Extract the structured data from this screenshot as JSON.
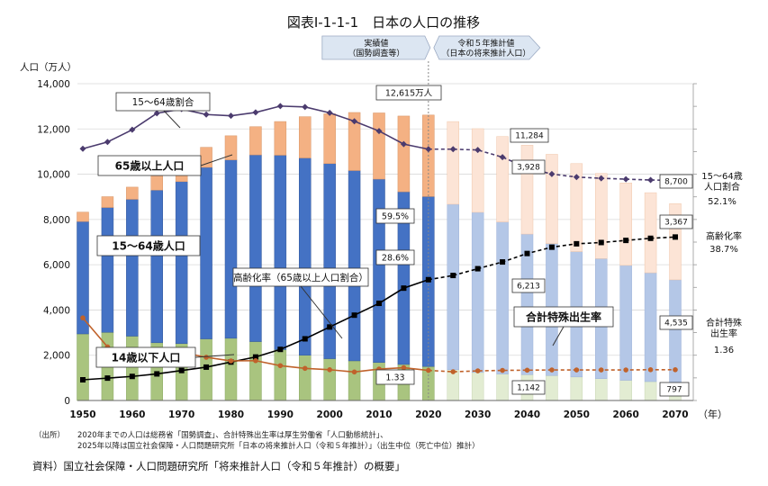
{
  "chart_data": {
    "type": "bar",
    "title": "図表Ⅰ-1-1-1　日本の人口の推移",
    "ylabel": "人口（万人）",
    "xlabel_unit": "（年）",
    "ylim": [
      0,
      14000
    ],
    "y_ticks": [
      "0",
      "2,000",
      "4,000",
      "6,000",
      "8,000",
      "10,000",
      "12,000",
      "14,000"
    ],
    "x_ticks": [
      "1950",
      "1960",
      "1970",
      "1980",
      "1990",
      "2000",
      "2010",
      "2020",
      "2030",
      "2040",
      "2050",
      "2060",
      "2070"
    ],
    "years": [
      1950,
      1955,
      1960,
      1965,
      1970,
      1975,
      1980,
      1985,
      1990,
      1995,
      2000,
      2005,
      2010,
      2015,
      2020,
      2025,
      2030,
      2035,
      2040,
      2045,
      2050,
      2055,
      2060,
      2065,
      2070
    ],
    "series": [
      {
        "name": "14歳以下人口",
        "values": [
          2943,
          3012,
          2843,
          2553,
          2515,
          2722,
          2751,
          2603,
          2249,
          2001,
          1847,
          1752,
          1680,
          1595,
          1503,
          1363,
          1240,
          1169,
          1142,
          1103,
          1041,
          966,
          893,
          836,
          797
        ]
      },
      {
        "name": "15〜64歳人口",
        "values": [
          4966,
          5517,
          6047,
          6744,
          7157,
          7581,
          7883,
          8251,
          8590,
          8716,
          8622,
          8409,
          8103,
          7629,
          7509,
          7310,
          7076,
          6722,
          6213,
          5832,
          5540,
          5307,
          5078,
          4809,
          4535
        ]
      },
      {
        "name": "65歳以上人口",
        "values": [
          416,
          479,
          540,
          624,
          739,
          887,
          1065,
          1247,
          1489,
          1826,
          2201,
          2567,
          2925,
          3347,
          3603,
          3653,
          3696,
          3773,
          3928,
          3945,
          3888,
          3760,
          3644,
          3538,
          3367
        ]
      }
    ],
    "lines": [
      {
        "name": "15〜64歳割合",
        "values": [
          59.6,
          61.2,
          64.1,
          68.0,
          69.0,
          67.7,
          67.4,
          68.2,
          69.7,
          69.5,
          68.1,
          66.1,
          63.8,
          60.7,
          59.5,
          59.5,
          59.3,
          57.6,
          55.1,
          53.6,
          52.9,
          52.6,
          52.4,
          52.2,
          52.1
        ]
      },
      {
        "name": "高齢化率（65歳以上人口割合）",
        "values": [
          4.9,
          5.3,
          5.7,
          6.3,
          7.1,
          7.9,
          9.1,
          10.3,
          12.1,
          14.6,
          17.4,
          20.2,
          23.0,
          26.6,
          28.6,
          29.6,
          31.2,
          32.8,
          34.8,
          36.3,
          37.1,
          37.4,
          37.9,
          38.4,
          38.7
        ]
      },
      {
        "name": "合計特殊出生率",
        "values": [
          3.65,
          2.37,
          2.0,
          2.14,
          2.13,
          1.91,
          1.75,
          1.76,
          1.54,
          1.42,
          1.36,
          1.26,
          1.39,
          1.45,
          1.33,
          1.27,
          1.31,
          1.33,
          1.34,
          1.35,
          1.35,
          1.35,
          1.35,
          1.36,
          1.36
        ]
      }
    ],
    "right_labels": [
      {
        "name": "15〜64歳\n人口割合",
        "value": "52.1%"
      },
      {
        "name": "高齢化率",
        "value": "38.7%"
      },
      {
        "name": "合計特殊\n出生率",
        "value": "1.36"
      }
    ],
    "annotations": {
      "series_label_15_64_ratio": "15〜64歳割合",
      "series_label_65_plus": "65歳以上人口",
      "series_label_15_64": "15〜64歳人口",
      "series_label_aging": "高齢化率（65歳以上人口割合）",
      "series_label_tfr": "合計特殊出生率",
      "series_label_under14": "14歳以下人口",
      "total_2020": "12,615万人",
      "ratio_2020": "59.5%",
      "aging_2020": "28.6%",
      "tfr_2020": "1.33",
      "val_2040_total": "11,284",
      "val_2040_65": "3,928",
      "val_2040_15_64": "6,213",
      "val_2040_under14": "1,142",
      "val_2070_total": "8,700",
      "val_2070_65": "3,367",
      "val_2070_15_64": "4,535",
      "val_2070_under14": "797",
      "period_actual": "実績値\n（国勢調査等）",
      "period_projection": "令和５年推計値\n（日本の将来推計人口）"
    }
  },
  "notes": {
    "label": "（出所）",
    "line1": "2020年までの人口は総務省「国勢調査」、合計特殊出生率は厚生労働省「人口動態統計」、",
    "line2": "2025年以降は国立社会保障・人口問題研究所「日本の将来推計人口（令和５年推計）」（出生中位（死亡中位）推計）"
  },
  "source": "資料）国立社会保障・人口問題研究所「将来推計人口（令和５年推計）の概要」",
  "colors": {
    "under14": "#a9c47f",
    "w15_64": "#4472c4",
    "over65": "#f4b183",
    "under14_proj": "#e2ecd2",
    "w15_64_proj": "#b4c7e7",
    "over65_proj": "#fce4d6",
    "ratio_line": "#4b3b6e",
    "aging_line": "#000000",
    "tfr_line": "#c0622b",
    "arrow": "#dce6f2"
  }
}
